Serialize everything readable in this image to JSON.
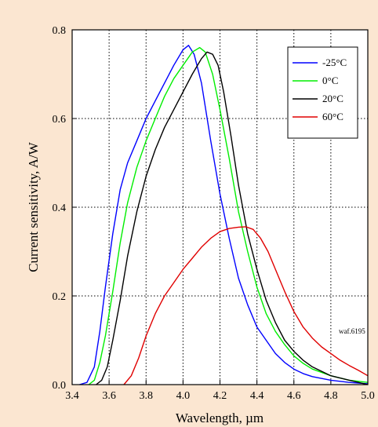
{
  "chart_data": {
    "type": "line",
    "xlabel": "Wavelength, µm",
    "ylabel": "Current sensitivity, A/W",
    "xlim": [
      3.4,
      5.0
    ],
    "ylim": [
      0.0,
      0.8
    ],
    "xticks": [
      "3.4",
      "3.6",
      "3.8",
      "4.0",
      "4.2",
      "4.4",
      "4.6",
      "4.8",
      "5.0"
    ],
    "yticks": [
      "0.0",
      "0.2",
      "0.4",
      "0.6",
      "0.8"
    ],
    "grid": true,
    "legend_position": "top-right",
    "annotation": "waf.6195",
    "series": [
      {
        "name": "-25°C",
        "color": "#0000ff",
        "x": [
          3.44,
          3.48,
          3.52,
          3.55,
          3.58,
          3.62,
          3.66,
          3.7,
          3.75,
          3.8,
          3.85,
          3.9,
          3.95,
          4.0,
          4.03,
          4.06,
          4.1,
          4.15,
          4.2,
          4.25,
          4.3,
          4.35,
          4.4,
          4.45,
          4.5,
          4.55,
          4.6,
          4.65,
          4.7,
          4.8,
          4.9,
          5.0
        ],
        "y": [
          0.0,
          0.005,
          0.04,
          0.12,
          0.22,
          0.34,
          0.44,
          0.5,
          0.55,
          0.6,
          0.64,
          0.68,
          0.72,
          0.755,
          0.765,
          0.745,
          0.68,
          0.55,
          0.43,
          0.33,
          0.24,
          0.18,
          0.13,
          0.1,
          0.07,
          0.05,
          0.035,
          0.025,
          0.018,
          0.01,
          0.005,
          0.002
        ]
      },
      {
        "name": "0°C",
        "color": "#00ee00",
        "x": [
          3.49,
          3.52,
          3.55,
          3.58,
          3.62,
          3.66,
          3.7,
          3.75,
          3.8,
          3.85,
          3.9,
          3.95,
          4.0,
          4.05,
          4.09,
          4.12,
          4.16,
          4.2,
          4.25,
          4.3,
          4.35,
          4.4,
          4.45,
          4.5,
          4.55,
          4.6,
          4.65,
          4.7,
          4.8,
          4.9,
          5.0
        ],
        "y": [
          0.0,
          0.01,
          0.05,
          0.11,
          0.21,
          0.32,
          0.41,
          0.49,
          0.55,
          0.6,
          0.65,
          0.69,
          0.72,
          0.75,
          0.76,
          0.75,
          0.7,
          0.62,
          0.51,
          0.39,
          0.3,
          0.22,
          0.16,
          0.12,
          0.09,
          0.065,
          0.048,
          0.035,
          0.02,
          0.01,
          0.005
        ]
      },
      {
        "name": "20°C",
        "color": "#000000",
        "x": [
          3.53,
          3.56,
          3.59,
          3.62,
          3.66,
          3.7,
          3.75,
          3.8,
          3.85,
          3.9,
          3.95,
          4.0,
          4.05,
          4.1,
          4.13,
          4.16,
          4.19,
          4.22,
          4.26,
          4.3,
          4.35,
          4.4,
          4.45,
          4.5,
          4.55,
          4.6,
          4.65,
          4.7,
          4.8,
          4.9,
          5.0
        ],
        "y": [
          0.0,
          0.01,
          0.04,
          0.1,
          0.19,
          0.29,
          0.39,
          0.47,
          0.53,
          0.58,
          0.62,
          0.66,
          0.7,
          0.735,
          0.75,
          0.745,
          0.72,
          0.66,
          0.56,
          0.45,
          0.34,
          0.26,
          0.19,
          0.14,
          0.1,
          0.075,
          0.055,
          0.04,
          0.02,
          0.01,
          0.0
        ]
      },
      {
        "name": "60°C",
        "color": "#e00000",
        "x": [
          3.68,
          3.72,
          3.76,
          3.8,
          3.85,
          3.9,
          3.95,
          4.0,
          4.05,
          4.1,
          4.15,
          4.2,
          4.25,
          4.3,
          4.34,
          4.38,
          4.42,
          4.46,
          4.5,
          4.55,
          4.6,
          4.65,
          4.7,
          4.75,
          4.8,
          4.85,
          4.9,
          4.95,
          5.0
        ],
        "y": [
          0.0,
          0.02,
          0.06,
          0.11,
          0.16,
          0.2,
          0.23,
          0.26,
          0.285,
          0.31,
          0.33,
          0.345,
          0.352,
          0.355,
          0.356,
          0.35,
          0.33,
          0.3,
          0.26,
          0.21,
          0.165,
          0.13,
          0.105,
          0.085,
          0.07,
          0.055,
          0.043,
          0.032,
          0.02
        ]
      }
    ]
  }
}
